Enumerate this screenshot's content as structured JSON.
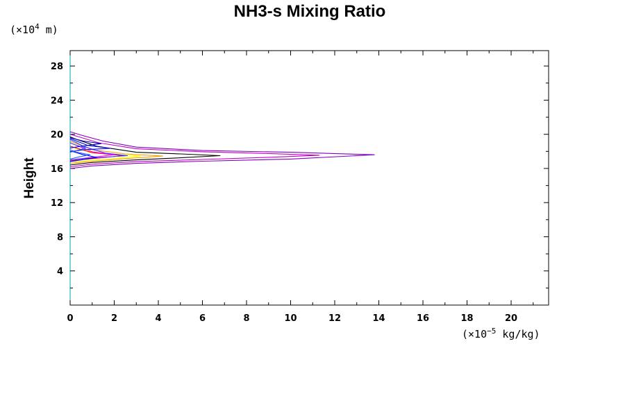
{
  "chart_data": {
    "type": "line",
    "title": "NH3-s Mixing Ratio",
    "ylabel": "Height",
    "xunit": {
      "prefix": "(×10",
      "exp": "−5",
      "suffix": " kg/kg)"
    },
    "yunit": {
      "prefix": "(×10",
      "exp": "4",
      "suffix": " m)"
    },
    "xlim": [
      0,
      21.7
    ],
    "ylim": [
      0,
      29.8
    ],
    "xticks": [
      0,
      2,
      4,
      6,
      8,
      10,
      12,
      14,
      16,
      18,
      20
    ],
    "yticks": [
      4,
      8,
      12,
      16,
      20,
      24,
      28
    ],
    "xtick_labels": [
      "0",
      "2",
      "4",
      "6",
      "8",
      "10",
      "12",
      "14",
      "16",
      "18",
      "20"
    ],
    "ytick_labels": [
      "4",
      "8",
      "12",
      "16",
      "20",
      "24",
      "28"
    ],
    "grid": false,
    "series": [
      {
        "color": "#8000c0",
        "points": [
          [
            0,
            16.0
          ],
          [
            1,
            16.3
          ],
          [
            3,
            16.6
          ],
          [
            6,
            16.85
          ],
          [
            10,
            17.1
          ],
          [
            13.8,
            17.6
          ],
          [
            10,
            17.9
          ],
          [
            6,
            18.1
          ],
          [
            3,
            18.5
          ],
          [
            1.5,
            19.2
          ],
          [
            0.5,
            19.9
          ],
          [
            0,
            20.3
          ]
        ]
      },
      {
        "color": "#c000c0",
        "points": [
          [
            0,
            16.2
          ],
          [
            1,
            16.5
          ],
          [
            3,
            16.8
          ],
          [
            6,
            17.05
          ],
          [
            9,
            17.3
          ],
          [
            11.3,
            17.55
          ],
          [
            9,
            17.75
          ],
          [
            6,
            17.95
          ],
          [
            3,
            18.3
          ],
          [
            1.3,
            19.0
          ],
          [
            0.4,
            19.7
          ],
          [
            0,
            20.0
          ]
        ]
      },
      {
        "color": "#000000",
        "points": [
          [
            0,
            16.4
          ],
          [
            1,
            16.7
          ],
          [
            3,
            17.0
          ],
          [
            5,
            17.25
          ],
          [
            6.8,
            17.5
          ],
          [
            5,
            17.7
          ],
          [
            3,
            17.9
          ],
          [
            1.2,
            18.6
          ],
          [
            0.3,
            19.4
          ],
          [
            0,
            19.7
          ]
        ]
      },
      {
        "color": "#f0a000",
        "points": [
          [
            0,
            16.6
          ],
          [
            1,
            16.85
          ],
          [
            2.5,
            17.15
          ],
          [
            4.2,
            17.45
          ],
          [
            2.5,
            17.7
          ],
          [
            1,
            18.2
          ],
          [
            0,
            19.2
          ]
        ]
      },
      {
        "color": "#ffff00",
        "points": [
          [
            0.2,
            16.8
          ],
          [
            1.5,
            17.05
          ],
          [
            3.2,
            17.45
          ],
          [
            1.5,
            17.75
          ],
          [
            0.2,
            18.3
          ]
        ]
      },
      {
        "color": "#ff0000",
        "points": [
          [
            0,
            16.9
          ],
          [
            1,
            17.15
          ],
          [
            2.4,
            17.5
          ],
          [
            1,
            17.85
          ],
          [
            0,
            18.6
          ]
        ]
      },
      {
        "color": "#ff00ff",
        "points": [
          [
            0,
            17.0
          ],
          [
            1,
            17.3
          ],
          [
            2.0,
            17.6
          ],
          [
            1,
            17.95
          ],
          [
            0,
            19.0
          ]
        ]
      },
      {
        "color": "#4040ff",
        "points": [
          [
            0,
            17.0
          ],
          [
            0.8,
            17.2
          ],
          [
            2.6,
            17.5
          ],
          [
            1.6,
            17.8
          ],
          [
            1.2,
            18.1
          ],
          [
            0.6,
            18.6
          ],
          [
            0,
            19.4
          ]
        ]
      },
      {
        "color": "#0000ff",
        "points": [
          [
            0,
            16.8
          ],
          [
            0.5,
            17.0
          ],
          [
            1.2,
            17.3
          ],
          [
            0.6,
            17.6
          ],
          [
            0.1,
            18.0
          ],
          [
            0.6,
            18.2
          ],
          [
            1.8,
            18.35
          ],
          [
            0.8,
            18.7
          ],
          [
            0,
            19.5
          ]
        ]
      },
      {
        "color": "#2060ff",
        "points": [
          [
            0,
            17.1
          ],
          [
            0.4,
            17.35
          ],
          [
            0.9,
            17.6
          ],
          [
            0.3,
            17.9
          ],
          [
            0,
            18.2
          ]
        ]
      },
      {
        "color": "#0000c0",
        "points": [
          [
            0,
            18.4
          ],
          [
            0.5,
            18.6
          ],
          [
            1.4,
            18.9
          ],
          [
            0.6,
            19.2
          ],
          [
            0,
            19.6
          ]
        ]
      },
      {
        "color": "#3050ff",
        "points": [
          [
            0,
            17.9
          ],
          [
            0.3,
            18.1
          ],
          [
            0.7,
            18.4
          ],
          [
            0.2,
            18.8
          ],
          [
            0,
            19.0
          ]
        ]
      }
    ]
  }
}
